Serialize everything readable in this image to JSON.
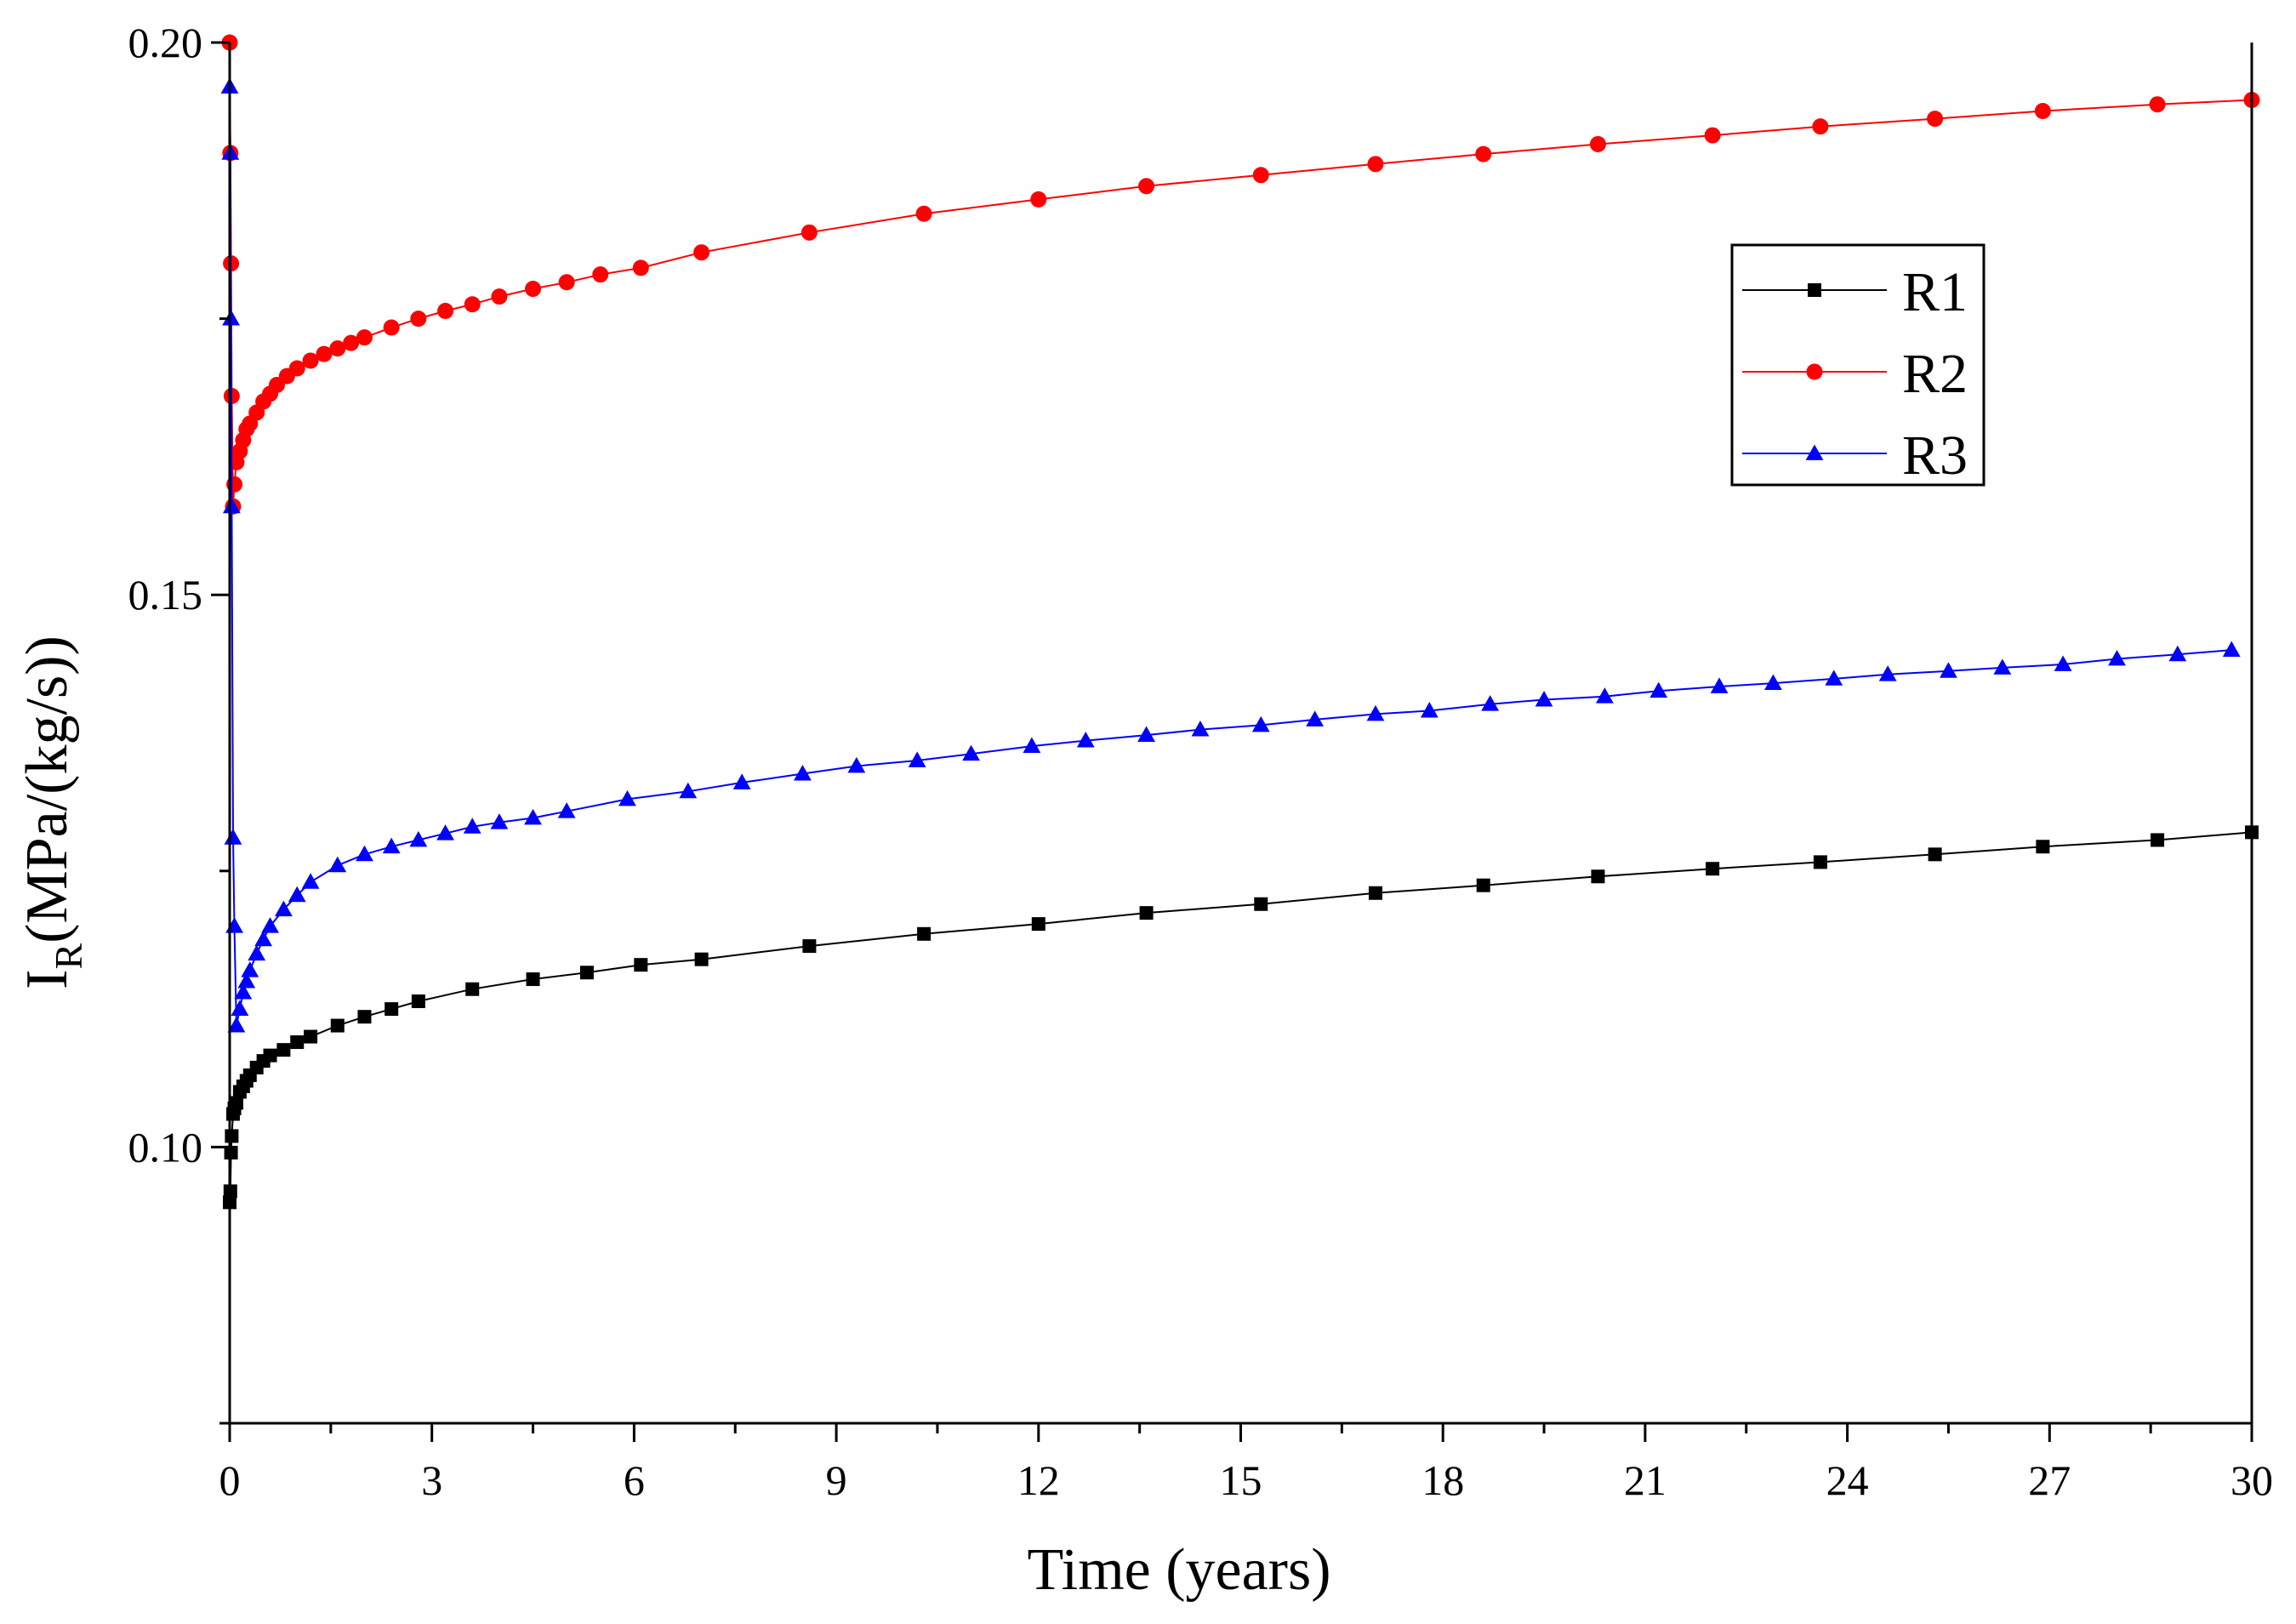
{
  "chart_data": {
    "type": "line",
    "title": "",
    "xlabel": "Time (years)",
    "ylabel_main": "I",
    "ylabel_sub": "R",
    "ylabel_unit": "(MPa/(kg/s))",
    "xlim": [
      0,
      30
    ],
    "ylim": [
      0.075,
      0.2
    ],
    "xticks": [
      0,
      3,
      6,
      9,
      12,
      15,
      18,
      21,
      24,
      27,
      30
    ],
    "xtick_labels": [
      "0",
      "3",
      "6",
      "9",
      "12",
      "15",
      "18",
      "21",
      "24",
      "27",
      "30"
    ],
    "yticks": [
      0.1,
      0.15,
      0.2
    ],
    "ytick_labels": [
      "0.10",
      "0.15",
      "0.20"
    ],
    "grid": false,
    "legend_position": "upper-right",
    "series": [
      {
        "name": "R1",
        "color": "#000000",
        "marker": "square",
        "x": [
          0,
          0.01,
          0.02,
          0.03,
          0.05,
          0.07,
          0.1,
          0.15,
          0.2,
          0.25,
          0.3,
          0.4,
          0.5,
          0.6,
          0.8,
          1.0,
          1.2,
          1.6,
          2.0,
          2.4,
          2.8,
          3.6,
          4.5,
          5.3,
          6.1,
          7.0,
          8.6,
          10.3,
          12.0,
          13.6,
          15.3,
          17.0,
          18.6,
          20.3,
          22.0,
          23.6,
          25.3,
          26.9,
          28.6,
          30.0
        ],
        "values": [
          0.095,
          0.096,
          0.0995,
          0.101,
          0.103,
          0.1035,
          0.104,
          0.105,
          0.1055,
          0.106,
          0.1065,
          0.1072,
          0.1078,
          0.1083,
          0.1088,
          0.1095,
          0.11,
          0.111,
          0.1118,
          0.1125,
          0.1132,
          0.1143,
          0.1152,
          0.1158,
          0.1165,
          0.117,
          0.1182,
          0.1193,
          0.1202,
          0.1212,
          0.122,
          0.123,
          0.1237,
          0.1245,
          0.1252,
          0.1258,
          0.1265,
          0.1272,
          0.1278,
          0.1285
        ]
      },
      {
        "name": "R2",
        "color": "#ff0000",
        "marker": "circle",
        "x": [
          0,
          0.01,
          0.02,
          0.03,
          0.05,
          0.07,
          0.1,
          0.15,
          0.2,
          0.25,
          0.3,
          0.4,
          0.5,
          0.6,
          0.7,
          0.85,
          1.0,
          1.2,
          1.4,
          1.6,
          1.8,
          2.0,
          2.4,
          2.8,
          3.2,
          3.6,
          4.0,
          4.5,
          5.0,
          5.5,
          6.1,
          7.0,
          8.6,
          10.3,
          12.0,
          13.6,
          15.3,
          17.0,
          18.6,
          20.3,
          22.0,
          23.6,
          25.3,
          26.9,
          28.6,
          30.0
        ],
        "values": [
          0.2,
          0.19,
          0.18,
          0.168,
          0.158,
          0.16,
          0.162,
          0.163,
          0.164,
          0.165,
          0.1655,
          0.1665,
          0.1675,
          0.1682,
          0.169,
          0.1698,
          0.1705,
          0.1712,
          0.1718,
          0.1723,
          0.1728,
          0.1733,
          0.1742,
          0.175,
          0.1757,
          0.1763,
          0.177,
          0.1777,
          0.1783,
          0.179,
          0.1796,
          0.181,
          0.1828,
          0.1845,
          0.1858,
          0.187,
          0.188,
          0.189,
          0.1899,
          0.1908,
          0.1916,
          0.1924,
          0.1931,
          0.1938,
          0.1944,
          0.1948
        ]
      },
      {
        "name": "R3",
        "color": "#0000ff",
        "marker": "triangle",
        "x": [
          0,
          0.01,
          0.02,
          0.03,
          0.05,
          0.07,
          0.1,
          0.15,
          0.2,
          0.25,
          0.3,
          0.4,
          0.5,
          0.6,
          0.8,
          1.0,
          1.2,
          1.6,
          2.0,
          2.4,
          2.8,
          3.2,
          3.6,
          4.0,
          4.5,
          5.0,
          5.9,
          6.8,
          7.6,
          8.5,
          9.3,
          10.2,
          11.0,
          11.9,
          12.7,
          13.6,
          14.4,
          15.3,
          16.1,
          17.0,
          17.8,
          18.7,
          19.5,
          20.4,
          21.2,
          22.1,
          22.9,
          23.8,
          24.6,
          25.5,
          26.3,
          27.2,
          28.0,
          28.9,
          29.7
        ],
        "values": [
          0.196,
          0.19,
          0.175,
          0.158,
          0.128,
          0.12,
          0.111,
          0.1125,
          0.114,
          0.115,
          0.116,
          0.1175,
          0.1188,
          0.12,
          0.1215,
          0.1228,
          0.124,
          0.1255,
          0.1265,
          0.1272,
          0.1278,
          0.1284,
          0.129,
          0.1294,
          0.1298,
          0.1304,
          0.1315,
          0.1322,
          0.133,
          0.1338,
          0.1345,
          0.135,
          0.1356,
          0.1363,
          0.1368,
          0.1373,
          0.1378,
          0.1382,
          0.1387,
          0.1392,
          0.1395,
          0.1401,
          0.1405,
          0.1408,
          0.1413,
          0.1417,
          0.142,
          0.1424,
          0.1428,
          0.1431,
          0.1434,
          0.1437,
          0.1442,
          0.1446,
          0.145
        ]
      }
    ]
  }
}
